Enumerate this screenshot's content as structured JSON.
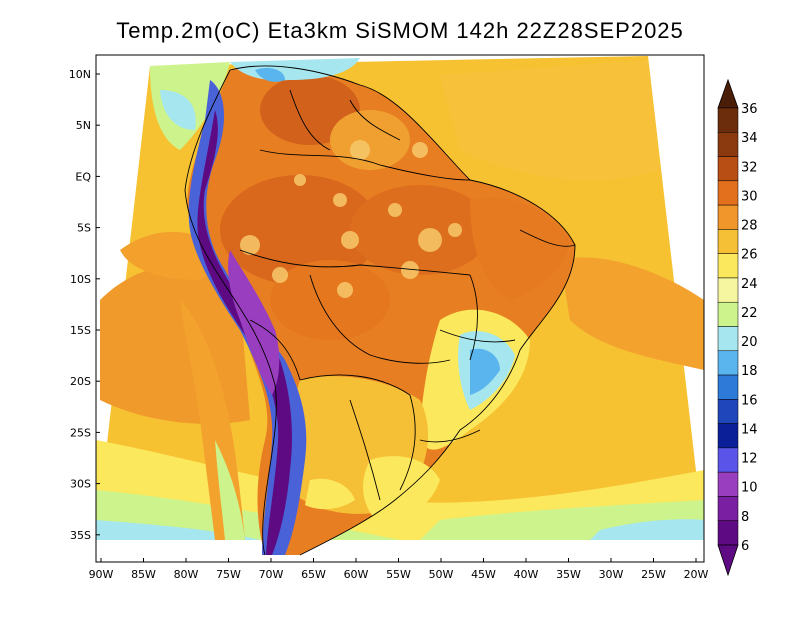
{
  "title": "Temp.2m(oC) Eta3km SiSMOM 142h 22Z28SEP2025",
  "map": {
    "lat_labels": [
      "10N",
      "5N",
      "EQ",
      "5S",
      "10S",
      "15S",
      "20S",
      "25S",
      "30S",
      "35S"
    ],
    "lon_labels": [
      "90W",
      "85W",
      "80W",
      "75W",
      "70W",
      "65W",
      "60W",
      "55W",
      "50W",
      "45W",
      "40W",
      "35W",
      "30W",
      "25W",
      "20W"
    ]
  },
  "colorbar": {
    "labels": [
      "36",
      "34",
      "32",
      "30",
      "28",
      "26",
      "24",
      "22",
      "20",
      "18",
      "16",
      "14",
      "12",
      "10",
      "8",
      "6"
    ],
    "colors": [
      "#6b2d0c",
      "#8b3a10",
      "#b84e14",
      "#e2701c",
      "#f0962a",
      "#f6c036",
      "#fbe85c",
      "#f6f6a0",
      "#cdf48c",
      "#a6e6ee",
      "#5ab4ee",
      "#2e7ad8",
      "#1f46ba",
      "#0b1f99",
      "#5a55e8",
      "#9a3ec0",
      "#7a1ea2",
      "#5e0a82"
    ],
    "bottom_arrow_color": "#5e0a82",
    "top_arrow_color": "#4a1d08"
  }
}
